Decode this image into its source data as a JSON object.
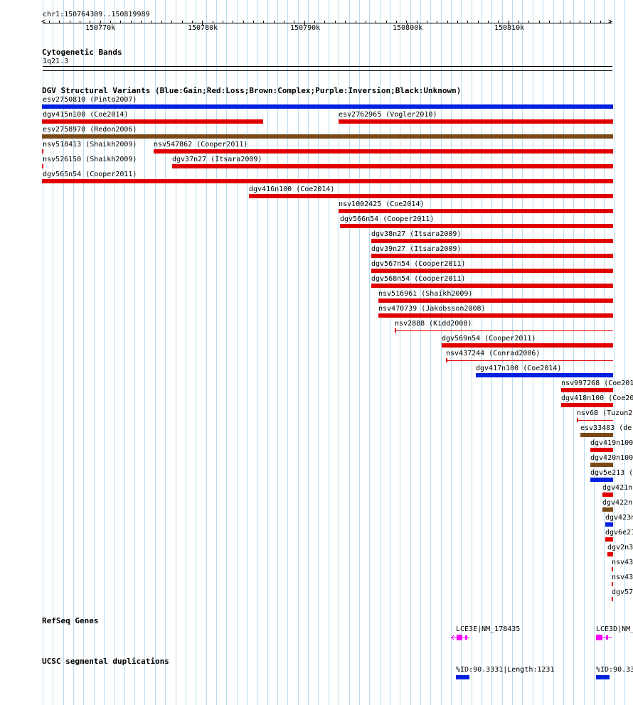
{
  "ruler": {
    "region": "chr1:150764309..150819989",
    "labels": [
      "150770k",
      "150780k",
      "150790k",
      "150800k",
      "150810k"
    ]
  },
  "cytoband": {
    "title": "Cytogenetic Bands",
    "band": "1q21.3"
  },
  "dgv": {
    "title": "DGV Structural Variants (Blue:Gain;Red:Loss;Brown:Complex;Purple:Inversion;Black:Unknown)",
    "colors": {
      "gain": "#0020e0",
      "loss": "#e00000",
      "complex": "#7a4a16",
      "inversion": "#800080",
      "unknown": "#000000"
    },
    "variants": [
      {
        "label": "esv2750810 (Pinto2007)",
        "type": "gain"
      },
      {
        "label": "dgv415n100 (Coe2014)",
        "type": "loss"
      },
      {
        "label": "esv2762965 (Vogler2010)",
        "type": "loss"
      },
      {
        "label": "esv2758970 (Redon2006)",
        "type": "complex"
      },
      {
        "label": "nsv518413 (Shaikh2009)",
        "type": "loss"
      },
      {
        "label": "nsv547862 (Cooper2011)",
        "type": "loss"
      },
      {
        "label": "nsv526150 (Shaikh2009)",
        "type": "loss"
      },
      {
        "label": "dgv37n27 (Itsara2009)",
        "type": "loss"
      },
      {
        "label": "dgv565n54 (Cooper2011)",
        "type": "loss"
      },
      {
        "label": "dgv416n100 (Coe2014)",
        "type": "loss"
      },
      {
        "label": "nsv1002425 (Coe2014)",
        "type": "loss"
      },
      {
        "label": "dgv566n54 (Cooper2011)",
        "type": "loss"
      },
      {
        "label": "dgv38n27 (Itsara2009)",
        "type": "loss"
      },
      {
        "label": "dgv39n27 (Itsara2009)",
        "type": "loss"
      },
      {
        "label": "dgv567n54 (Cooper2011)",
        "type": "loss"
      },
      {
        "label": "dgv568n54 (Cooper2011)",
        "type": "loss"
      },
      {
        "label": "nsv516961 (Shaikh2009)",
        "type": "loss"
      },
      {
        "label": "nsv470739 (Jakobsson2008)",
        "type": "loss"
      },
      {
        "label": "nsv2888 (Kidd2008)",
        "type": "loss"
      },
      {
        "label": "dgv569n54 (Cooper2011)",
        "type": "loss"
      },
      {
        "label": "nsv437244 (Conrad2006)",
        "type": "loss"
      },
      {
        "label": "dgv417n100 (Coe2014)",
        "type": "gain"
      },
      {
        "label": "nsv997268 (Coe201",
        "type": "loss"
      },
      {
        "label": "dgv418n100 (Coe20",
        "type": "loss"
      },
      {
        "label": "nsv68 (Tuzun2",
        "type": "loss"
      },
      {
        "label": "esv33483 (de",
        "type": "complex"
      },
      {
        "label": "dgv419n100",
        "type": "loss"
      },
      {
        "label": "dgv420n100",
        "type": "complex"
      },
      {
        "label": "dgv5e213 (",
        "type": "gain"
      },
      {
        "label": "dgv421n",
        "type": "loss"
      },
      {
        "label": "dgv422n",
        "type": "complex"
      },
      {
        "label": "dgv423n",
        "type": "gain"
      },
      {
        "label": "dgv6e21",
        "type": "loss"
      },
      {
        "label": "dgv2n3",
        "type": "loss"
      },
      {
        "label": "nsv43",
        "type": "loss"
      },
      {
        "label": "nsv43",
        "type": "loss"
      },
      {
        "label": "dgv57",
        "type": "loss"
      }
    ]
  },
  "refseq": {
    "title": "RefSeq Genes",
    "color": "#ff00ff",
    "genes": [
      {
        "label": "LCE3E|NM_178435"
      },
      {
        "label": "LCE3D|NM_"
      }
    ]
  },
  "segdup": {
    "title": "UCSC segmental duplications",
    "color": "#0020e0",
    "items": [
      {
        "label": "%ID:90.3331|Length:1231"
      },
      {
        "label": "%ID:90.33"
      }
    ]
  }
}
